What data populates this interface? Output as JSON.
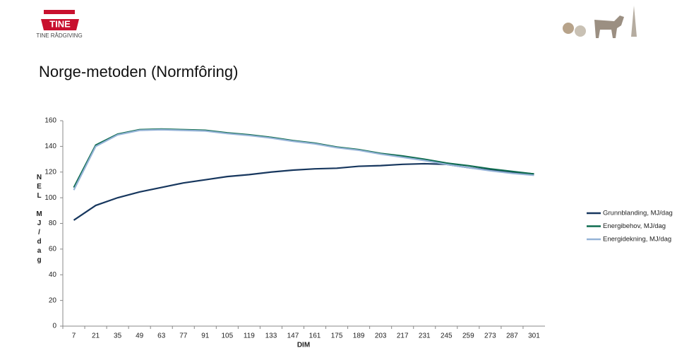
{
  "logo": {
    "brand": "TINE",
    "subtitle": "TINE RÅDGIVING"
  },
  "slide_title": "Norge-metoden (Normfôring)",
  "chart_data": {
    "type": "line",
    "y_label": "NEL MJ/dag",
    "x_label": "DIM",
    "categories": [
      7,
      21,
      35,
      49,
      63,
      77,
      91,
      105,
      119,
      133,
      147,
      161,
      175,
      189,
      203,
      217,
      231,
      245,
      259,
      273,
      287,
      301
    ],
    "ylim": [
      0,
      160
    ],
    "yticks": [
      0,
      20,
      40,
      60,
      80,
      100,
      120,
      140,
      160
    ],
    "legend": "right",
    "series": [
      {
        "name": "Grunnblanding, MJ/dag",
        "color": "#17375e",
        "values": [
          82.5,
          94,
          100,
          104.5,
          108,
          111.5,
          114,
          116.5,
          118,
          120,
          121.5,
          122.5,
          123,
          124.5,
          125,
          126,
          126.5,
          126,
          123.5,
          121.5,
          120,
          118.5
        ]
      },
      {
        "name": "Energibehov, MJ/dag",
        "color": "#0e6b4f",
        "values": [
          108,
          141,
          149.5,
          153,
          153.5,
          153,
          152.5,
          150.5,
          149,
          147,
          144.5,
          142.5,
          139.5,
          137.5,
          134.5,
          132.5,
          130,
          127,
          125,
          122.5,
          120.5,
          118.5
        ]
      },
      {
        "name": "Energidekning, MJ/dag",
        "color": "#95b3d7",
        "values": [
          106,
          140,
          149,
          152.5,
          153,
          152.5,
          152,
          150,
          148.5,
          146.5,
          144,
          142,
          139,
          137,
          134,
          131.5,
          129,
          126,
          123.5,
          121,
          119,
          117.5
        ]
      }
    ]
  }
}
